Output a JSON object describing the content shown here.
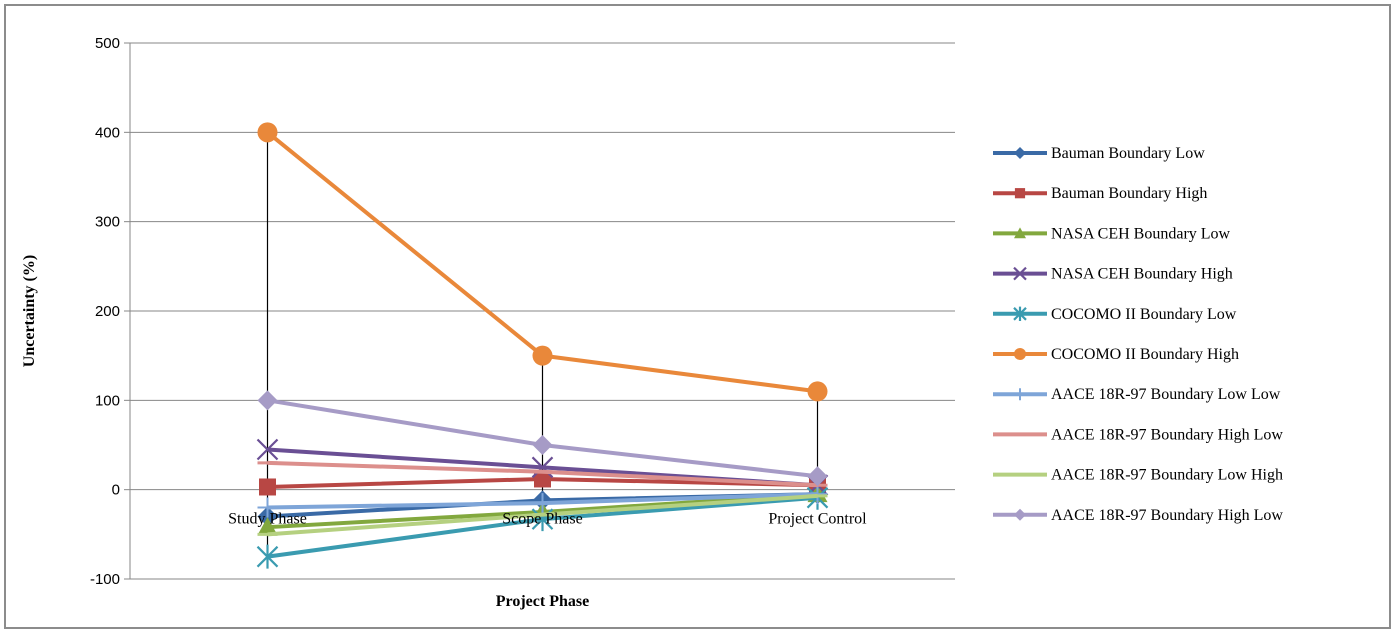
{
  "chart_data": {
    "type": "line",
    "title": "",
    "xlabel": "Project Phase",
    "ylabel": "Uncertainty (%)",
    "categories": [
      "Study Phase",
      "Scope Phase",
      "Project Control"
    ],
    "ylim": [
      -100,
      500
    ],
    "yticks": [
      -100,
      0,
      100,
      200,
      300,
      400,
      500
    ],
    "grid": true,
    "legend_position": "right",
    "series": [
      {
        "name": "Bauman Boundary Low",
        "values": [
          -30,
          -12,
          -5
        ],
        "color": "#3a6aa6",
        "marker": "diamond"
      },
      {
        "name": "Bauman Boundary High",
        "values": [
          3,
          12,
          5
        ],
        "color": "#b84744",
        "marker": "square"
      },
      {
        "name": "NASA CEH Boundary Low",
        "values": [
          -42,
          -25,
          -5
        ],
        "color": "#82a83e",
        "marker": "triangle"
      },
      {
        "name": "NASA CEH Boundary High",
        "values": [
          45,
          25,
          5
        ],
        "color": "#6a4f94",
        "marker": "x"
      },
      {
        "name": "COCOMO II Boundary Low",
        "values": [
          -75,
          -33,
          -9
        ],
        "color": "#3a9bb0",
        "marker": "star"
      },
      {
        "name": "COCOMO II Boundary High",
        "values": [
          400,
          150,
          110
        ],
        "color": "#e9883a",
        "marker": "circle"
      },
      {
        "name": "AACE 18R-97 Boundary Low Low",
        "values": [
          -20,
          -15,
          -5
        ],
        "color": "#7ea5d8",
        "marker": "plus"
      },
      {
        "name": "AACE 18R-97  Boundary High Low",
        "values": [
          30,
          20,
          5
        ],
        "color": "#dc8f8c",
        "marker": "dash"
      },
      {
        "name": "AACE 18R-97 Boundary Low High",
        "values": [
          -50,
          -28,
          -7
        ],
        "color": "#b5d080",
        "marker": "dash"
      },
      {
        "name": "AACE 18R-97  Boundary High Low",
        "values": [
          100,
          50,
          15
        ],
        "color": "#a69bc6",
        "marker": "diamond"
      }
    ]
  }
}
